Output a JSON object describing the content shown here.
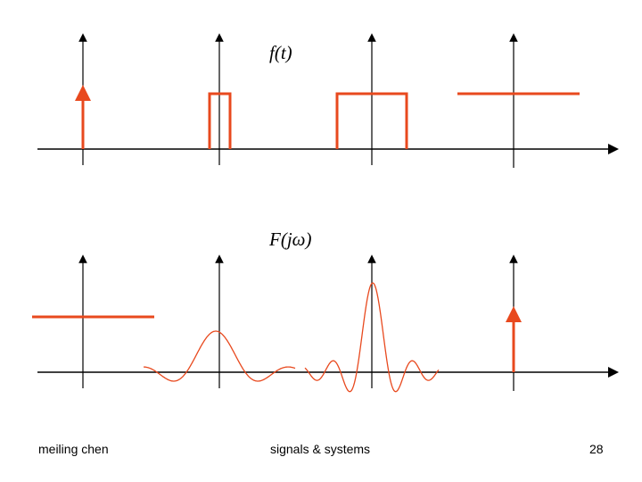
{
  "top_label": "f(t)",
  "bottom_label": "F(jω)",
  "footer": {
    "author": "meiling chen",
    "course": "signals & systems",
    "page": "28"
  },
  "colors": {
    "axis": "#000000",
    "signal": "#e8491e"
  },
  "top_row_signals": [
    "impulse",
    "narrow-rectangle",
    "wide-rectangle",
    "constant"
  ],
  "bottom_row_spectra": [
    "constant",
    "wide-sinc",
    "narrow-sinc",
    "impulse"
  ]
}
